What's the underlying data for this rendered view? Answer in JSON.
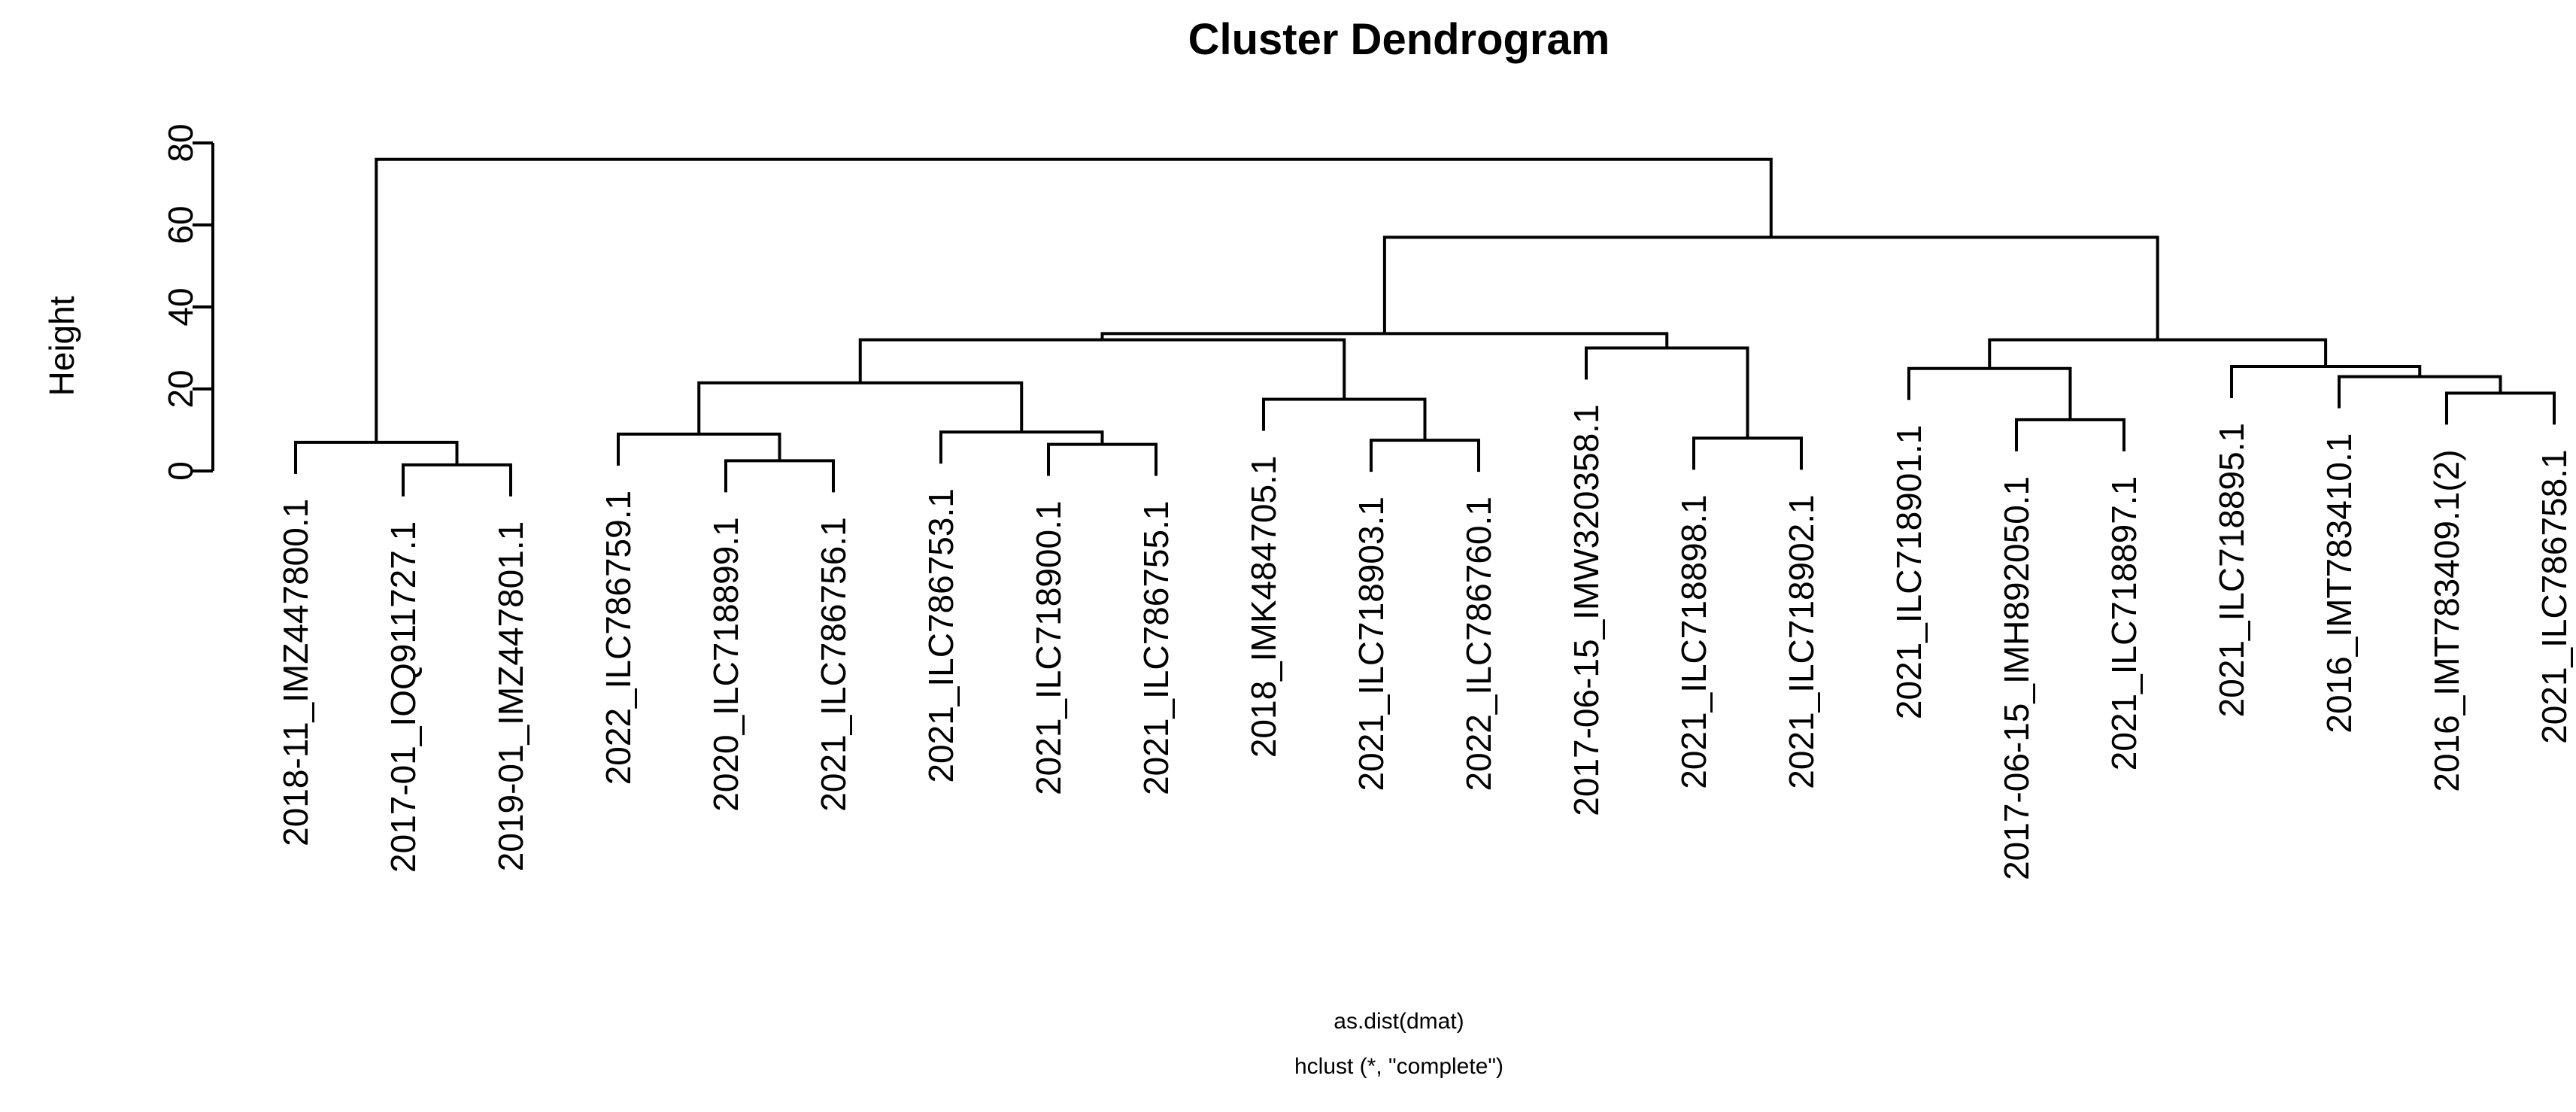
{
  "title": "Cluster Dendrogram",
  "y_axis": {
    "label": "Height",
    "ticks": [
      0,
      20,
      40,
      60,
      80
    ],
    "range": [
      0,
      80
    ]
  },
  "caption": {
    "line1": "as.dist(dmat)",
    "line2": "hclust (*, \"complete\")"
  },
  "colors": {
    "foreground": "#000000",
    "background": "#ffffff"
  },
  "chart_data": {
    "type": "dendrogram",
    "title": "Cluster Dendrogram",
    "ylabel": "Height",
    "xlabel": "as.dist(dmat)",
    "method_caption": "hclust (*, \"complete\")",
    "ylim": [
      0,
      80
    ],
    "yticks": [
      0,
      20,
      40,
      60,
      80
    ],
    "grid": false,
    "hang": 7.7,
    "leaves": [
      "2018-11_IMZ447800.1",
      "2017-01_IOQ911727.1",
      "2019-01_IMZ447801.1",
      "2022_ILC786759.1",
      "2020_ILC718899.1",
      "2021_ILC786756.1",
      "2021_ILC786753.1",
      "2021_ILC718900.1",
      "2021_ILC786755.1",
      "2018_IMK484705.1",
      "2021_ILC718903.1",
      "2022_ILC786760.1",
      "2017-06-15_IMW320358.1",
      "2021_ILC718898.1",
      "2021_ILC718902.1",
      "2021_ILC718901.1",
      "2017-06-15_IMH892050.1",
      "2021_ILC718897.1",
      "2021_ILC718895.1",
      "2016_IMT783410.1",
      "2016_IMT783409.1(2)",
      "2021_ILC786758.1"
    ],
    "merges": [
      [
        -2,
        -3,
        1.5
      ],
      [
        -1,
        1,
        7
      ],
      [
        -5,
        -6,
        2.5
      ],
      [
        -4,
        3,
        9
      ],
      [
        -8,
        -9,
        6.5
      ],
      [
        -7,
        5,
        9.5
      ],
      [
        4,
        6,
        21.5
      ],
      [
        -11,
        -12,
        7.5
      ],
      [
        -10,
        8,
        17.5
      ],
      [
        7,
        9,
        32
      ],
      [
        -14,
        -15,
        8
      ],
      [
        -13,
        11,
        30
      ],
      [
        10,
        12,
        33.5
      ],
      [
        -17,
        -18,
        12.5
      ],
      [
        -16,
        14,
        25
      ],
      [
        -21,
        -22,
        19
      ],
      [
        -20,
        16,
        23
      ],
      [
        -19,
        17,
        25.5
      ],
      [
        15,
        18,
        32
      ],
      [
        13,
        19,
        57
      ],
      [
        2,
        20,
        76
      ]
    ]
  }
}
